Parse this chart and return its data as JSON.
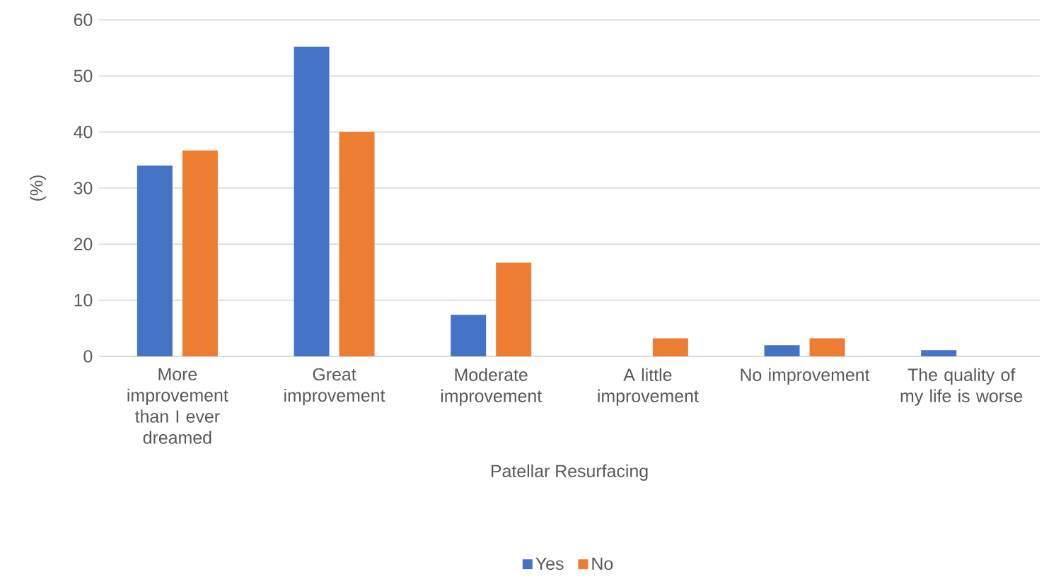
{
  "chart_data": {
    "type": "bar",
    "xlabel": "Patellar Resurfacing",
    "ylabel": "(%)",
    "categories": [
      "More improvement than I ever dreamed",
      "Great improvement",
      "Moderate improvement",
      "A little improvement",
      "No improvement",
      "The quality of my life is worse"
    ],
    "series": [
      {
        "name": "Yes",
        "color": "#4472c4",
        "values": [
          34.0,
          55.2,
          7.4,
          0,
          2.0,
          1.1
        ]
      },
      {
        "name": "No",
        "color": "#ed7d31",
        "values": [
          36.7,
          40.0,
          16.7,
          3.2,
          3.2,
          0
        ]
      }
    ],
    "ylim": [
      0,
      60
    ],
    "yticks": [
      0,
      10,
      20,
      30,
      40,
      50,
      60
    ],
    "grid": "y",
    "legend": "bottom"
  }
}
